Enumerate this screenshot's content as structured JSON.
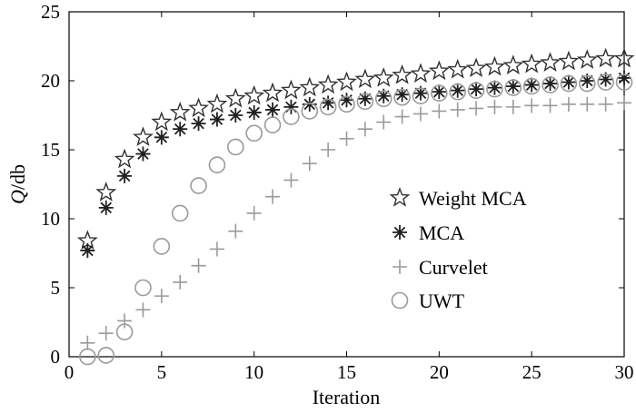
{
  "chart_data": {
    "type": "scatter",
    "title": "",
    "xlabel": "Iteration",
    "ylabel_italic": "Q",
    "ylabel_rest": "/db",
    "xlim": [
      0,
      30
    ],
    "ylim": [
      0,
      25
    ],
    "x_ticks": [
      0,
      5,
      10,
      15,
      20,
      25,
      30
    ],
    "y_ticks": [
      0,
      5,
      10,
      15,
      20,
      25
    ],
    "grid": false,
    "legend_position": "center-right",
    "x": [
      1,
      2,
      3,
      4,
      5,
      6,
      7,
      8,
      9,
      10,
      11,
      12,
      13,
      14,
      15,
      16,
      17,
      18,
      19,
      20,
      21,
      22,
      23,
      24,
      25,
      26,
      27,
      28,
      29,
      30
    ],
    "series": [
      {
        "name": "Weight MCA",
        "marker": "star",
        "color": "#303030",
        "values": [
          8.4,
          11.9,
          14.3,
          15.9,
          17.0,
          17.7,
          18.0,
          18.3,
          18.7,
          18.9,
          19.1,
          19.3,
          19.5,
          19.7,
          19.9,
          20.1,
          20.2,
          20.4,
          20.5,
          20.7,
          20.8,
          20.9,
          21.0,
          21.1,
          21.2,
          21.3,
          21.4,
          21.5,
          21.6,
          21.6
        ]
      },
      {
        "name": "MCA",
        "marker": "asterisk",
        "color": "#202020",
        "values": [
          7.7,
          10.8,
          13.1,
          14.7,
          15.9,
          16.5,
          16.9,
          17.2,
          17.5,
          17.7,
          17.9,
          18.1,
          18.3,
          18.4,
          18.6,
          18.7,
          18.9,
          19.0,
          19.1,
          19.2,
          19.3,
          19.4,
          19.5,
          19.6,
          19.7,
          19.8,
          19.9,
          20.0,
          20.1,
          20.2
        ]
      },
      {
        "name": "Curvelet",
        "marker": "plus",
        "color": "#9a9a9a",
        "values": [
          1.0,
          1.7,
          2.6,
          3.4,
          4.4,
          5.4,
          6.6,
          7.8,
          9.1,
          10.4,
          11.6,
          12.8,
          14.0,
          15.0,
          15.8,
          16.5,
          17.0,
          17.4,
          17.6,
          17.8,
          17.9,
          18.0,
          18.1,
          18.1,
          18.2,
          18.2,
          18.3,
          18.3,
          18.3,
          18.4
        ]
      },
      {
        "name": "UWT",
        "marker": "circle",
        "color": "#9a9a9a",
        "values": [
          0.0,
          0.1,
          1.8,
          5.0,
          8.0,
          10.4,
          12.4,
          13.9,
          15.2,
          16.2,
          16.8,
          17.4,
          17.8,
          18.1,
          18.3,
          18.5,
          18.7,
          18.8,
          18.9,
          19.1,
          19.2,
          19.3,
          19.4,
          19.5,
          19.6,
          19.7,
          19.8,
          19.8,
          19.9,
          19.9
        ]
      }
    ]
  }
}
